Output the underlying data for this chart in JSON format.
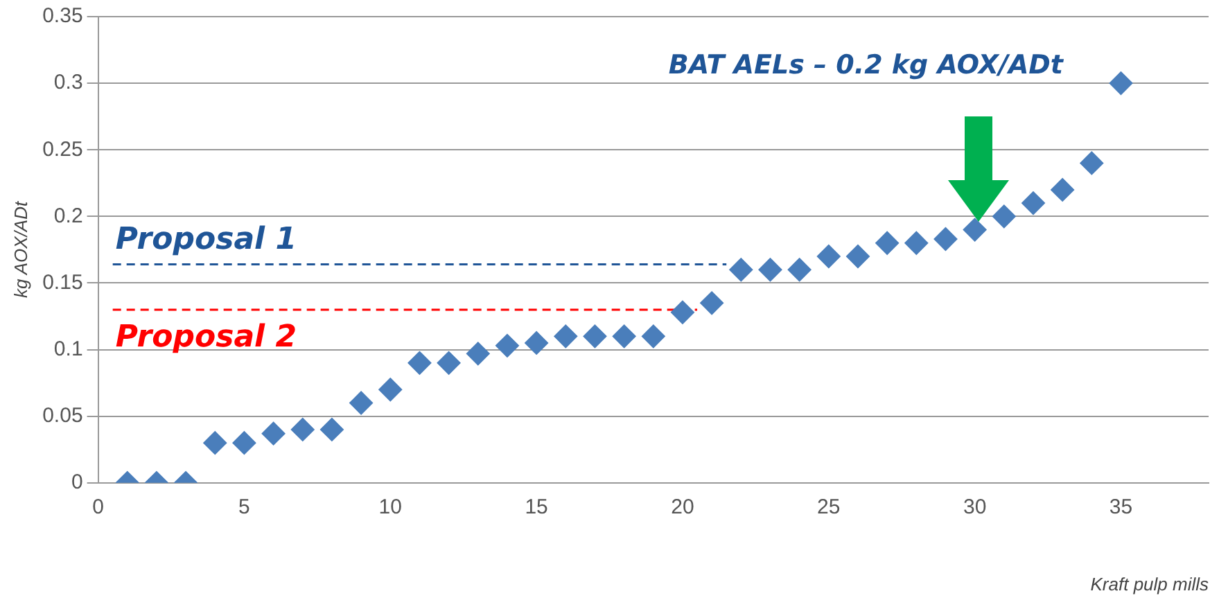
{
  "chart_data": {
    "type": "scatter",
    "xlabel": "Kraft pulp mills",
    "ylabel": "kg AOX/ADt",
    "xlim": [
      0,
      38
    ],
    "xticks": [
      0,
      5,
      10,
      15,
      20,
      25,
      30,
      35
    ],
    "ylim": [
      0,
      0.35
    ],
    "yticks": [
      0,
      0.05,
      0.1,
      0.15,
      0.2,
      0.25,
      0.3,
      0.35
    ],
    "grid": "y",
    "legend": false,
    "marker": "diamond",
    "annotations": [
      "BAT AELs – 0.2 kg AOX/ADt"
    ],
    "series": [
      {
        "color": "#4a7ebb",
        "x": [
          1,
          2,
          3,
          4,
          5,
          6,
          7,
          8,
          9,
          10,
          11,
          12,
          13,
          14,
          15,
          16,
          17,
          18,
          19,
          20,
          21,
          22,
          23,
          24,
          25,
          26,
          27,
          28,
          29,
          30,
          31,
          32,
          33,
          34,
          35
        ],
        "values": [
          0,
          0,
          0,
          0.03,
          0.03,
          0.037,
          0.04,
          0.04,
          0.06,
          0.07,
          0.09,
          0.09,
          0.097,
          0.103,
          0.105,
          0.11,
          0.11,
          0.11,
          0.11,
          0.128,
          0.135,
          0.16,
          0.16,
          0.16,
          0.17,
          0.17,
          0.18,
          0.18,
          0.183,
          0.19,
          0.2,
          0.21,
          0.22,
          0.24,
          0.3
        ]
      },
      {
        "type": "line",
        "name": "Proposal 1",
        "color": "#1f5597",
        "line_style": "dashed",
        "marker": "none",
        "x": [
          0.5,
          21.5
        ],
        "values": [
          0.164,
          0.164
        ]
      },
      {
        "type": "line",
        "name": "Proposal 2",
        "color": "#ff0000",
        "line_style": "dashed",
        "marker": "none",
        "x": [
          0.5,
          20.5
        ],
        "values": [
          0.13,
          0.13
        ]
      }
    ]
  }
}
